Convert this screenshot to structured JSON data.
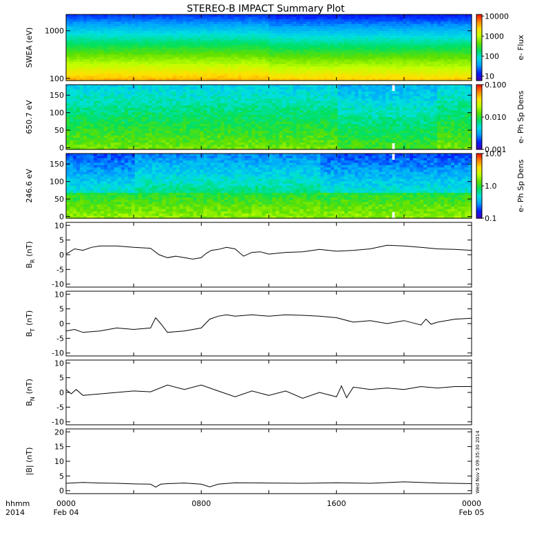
{
  "title": "STEREO-B IMPACT Summary Plot",
  "x_axis": {
    "tick_labels": [
      "0000",
      "0800",
      "1600",
      "0000"
    ],
    "date_labels": [
      "Feb 04",
      "",
      "",
      "Feb 05"
    ],
    "corner_top": "hhmm",
    "corner_bottom": "2014",
    "range_hours": [
      0,
      24
    ]
  },
  "timestamp": "Wed Nov  5 09:35:30 2014",
  "colors": {
    "frame": "#000000",
    "trace": "#000000",
    "colormap": [
      "#4000c0",
      "#0020ff",
      "#00a0ff",
      "#00e0e0",
      "#00e060",
      "#60e000",
      "#c0ff00",
      "#ffe000",
      "#ff8000",
      "#ff0000"
    ]
  },
  "chart_data": [
    {
      "type": "heatmap",
      "panel": "swea",
      "ylabel": "SWEA (eV)",
      "y_scale": "log",
      "ylim": [
        90,
        2200
      ],
      "yticks": [
        100,
        1000
      ],
      "ytick_labels": [
        "100",
        "1000"
      ],
      "colorbar": {
        "label": "e- Flux",
        "scale": "log",
        "range": [
          6,
          12000
        ],
        "ticks": [
          10,
          100,
          1000,
          10000
        ],
        "tick_labels": [
          "10",
          "100",
          "1000",
          "10000"
        ]
      }
    },
    {
      "type": "heatmap",
      "panel": "pad650",
      "ylabel": "650.7 eV",
      "y_scale": "linear",
      "ylim": [
        -5,
        180
      ],
      "yticks": [
        0,
        50,
        100,
        150
      ],
      "ytick_labels": [
        "0",
        "50",
        "100",
        "150"
      ],
      "colorbar": {
        "label": "e- Ph Sp Dens",
        "scale": "log",
        "range": [
          0.001,
          0.1
        ],
        "ticks": [
          0.001,
          0.01,
          0.1
        ],
        "tick_labels": [
          "0.001",
          "0.010",
          "0.100"
        ]
      },
      "data_gap_hours": [
        19.3,
        19.45
      ]
    },
    {
      "type": "heatmap",
      "panel": "pad246",
      "ylabel": "246.6 eV",
      "y_scale": "linear",
      "ylim": [
        -5,
        180
      ],
      "yticks": [
        0,
        50,
        100,
        150
      ],
      "ytick_labels": [
        "0",
        "50",
        "100",
        "150"
      ],
      "colorbar": {
        "label": "e- Ph Sp Dens",
        "scale": "log",
        "range": [
          0.1,
          10
        ],
        "ticks": [
          0.1,
          1,
          10
        ],
        "tick_labels": [
          "0.1",
          "1.0",
          "10.0"
        ]
      },
      "data_gap_hours": [
        19.3,
        19.45
      ]
    },
    {
      "type": "line",
      "panel": "br",
      "ylabel_main": "B",
      "ylabel_sub": "R",
      "ylabel_unit": "(nT)",
      "ylim": [
        -11,
        11
      ],
      "yticks": [
        -10,
        -5,
        0,
        5,
        10
      ],
      "ytick_labels": [
        "-10",
        "-5",
        "0",
        "5",
        "10"
      ],
      "x": [
        0,
        0.5,
        1,
        1.5,
        2,
        3,
        4,
        5,
        5.5,
        6,
        6.5,
        7,
        7.5,
        8,
        8.3,
        8.6,
        9,
        9.5,
        10,
        10.5,
        11,
        11.5,
        12,
        13,
        14,
        15,
        16,
        17,
        18,
        19,
        20,
        21,
        22,
        23,
        24
      ],
      "y": [
        0.2,
        2,
        1.5,
        2.5,
        3,
        3,
        2.5,
        2.2,
        0,
        -1,
        -0.5,
        -1,
        -1.5,
        -1,
        0.5,
        1.5,
        1.8,
        2.5,
        2,
        -0.5,
        0.8,
        1,
        0.2,
        0.8,
        1,
        1.8,
        1.2,
        1.5,
        2,
        3.2,
        3,
        2.5,
        2,
        1.8,
        1.5
      ]
    },
    {
      "type": "line",
      "panel": "bt",
      "ylabel_main": "B",
      "ylabel_sub": "T",
      "ylabel_unit": "(nT)",
      "ylim": [
        -11,
        11
      ],
      "yticks": [
        -10,
        -5,
        0,
        5,
        10
      ],
      "ytick_labels": [
        "-10",
        "-5",
        "0",
        "5",
        "10"
      ],
      "x": [
        0,
        0.5,
        1,
        2,
        3,
        4,
        5,
        5.3,
        5.6,
        6,
        7,
        8,
        8.5,
        9,
        9.5,
        10,
        11,
        12,
        13,
        14,
        15,
        16,
        17,
        18,
        19,
        20,
        21,
        21.3,
        21.6,
        22,
        23,
        24
      ],
      "y": [
        -2.5,
        -2,
        -3,
        -2.5,
        -1.5,
        -2,
        -1.5,
        2,
        0,
        -3,
        -2.5,
        -1.5,
        1.5,
        2.5,
        3,
        2.5,
        3,
        2.5,
        3,
        2.8,
        2.5,
        2,
        0.5,
        1,
        0,
        1,
        -0.5,
        1.5,
        -0.2,
        0.5,
        1.5,
        1.8
      ]
    },
    {
      "type": "line",
      "panel": "bn",
      "ylabel_main": "B",
      "ylabel_sub": "N",
      "ylabel_unit": "(nT)",
      "ylim": [
        -11,
        11
      ],
      "yticks": [
        -10,
        -5,
        0,
        5,
        10
      ],
      "ytick_labels": [
        "-10",
        "-5",
        "0",
        "5",
        "10"
      ],
      "x": [
        0,
        0.3,
        0.6,
        1,
        2,
        3,
        4,
        5,
        6,
        7,
        8,
        9,
        10,
        11,
        12,
        13,
        14,
        15,
        16,
        16.3,
        16.6,
        17,
        18,
        19,
        20,
        21,
        22,
        23,
        24
      ],
      "y": [
        1,
        -0.5,
        1,
        -1,
        -0.5,
        0,
        0.5,
        0.2,
        2.5,
        1,
        2.5,
        0.5,
        -1.5,
        0.5,
        -1,
        0.5,
        -2,
        0,
        -1.5,
        2.2,
        -1.8,
        1.8,
        1,
        1.5,
        1,
        2,
        1.5,
        2,
        2
      ]
    },
    {
      "type": "line",
      "panel": "bmag",
      "ylabel_main": "|B| (nT)",
      "ylim": [
        -1,
        21
      ],
      "yticks": [
        0,
        5,
        10,
        15,
        20
      ],
      "ytick_labels": [
        "0",
        "5",
        "10",
        "15",
        "20"
      ],
      "x": [
        0,
        1,
        2,
        3,
        4,
        5,
        5.3,
        5.6,
        6,
        7,
        8,
        8.5,
        9,
        10,
        12,
        14,
        16,
        18,
        20,
        22,
        24
      ],
      "y": [
        2.5,
        2.8,
        2.6,
        2.5,
        2.3,
        2.2,
        1.2,
        2.2,
        2.4,
        2.6,
        2.2,
        1.3,
        2.2,
        2.7,
        2.6,
        2.5,
        2.7,
        2.5,
        3,
        2.6,
        2.4
      ]
    }
  ]
}
